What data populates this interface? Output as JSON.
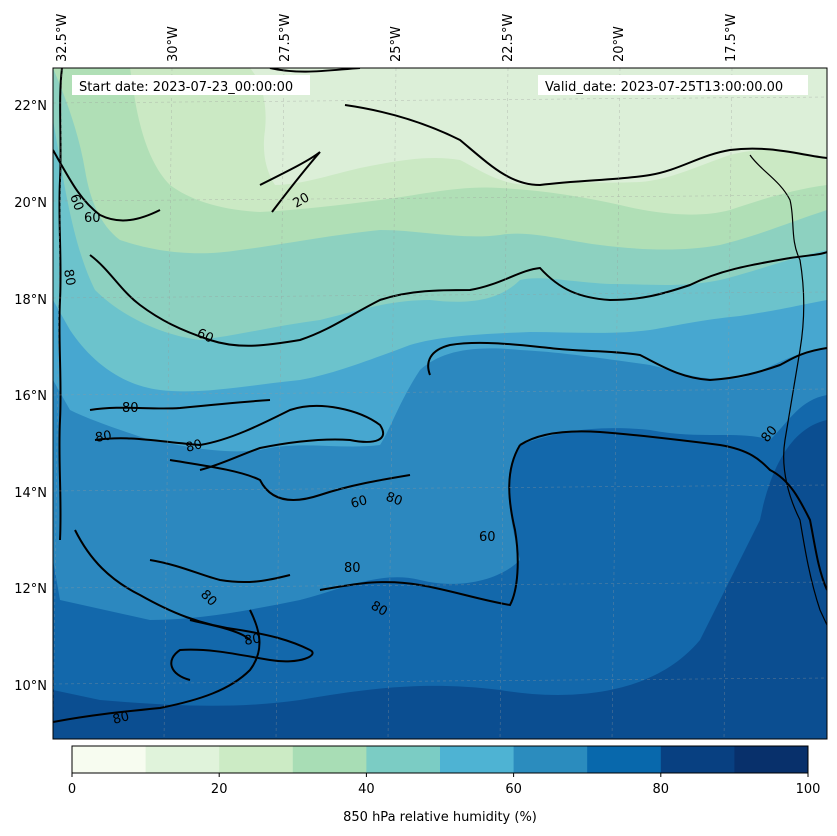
{
  "header": {
    "start_date": "Start date: 2023-07-23_00:00:00",
    "valid_date": "Valid_date: 2023-07-25T13:00:00.00"
  },
  "map": {
    "longitude_labels": [
      "32.5°W",
      "30°W",
      "27.5°W",
      "25°W",
      "22.5°W",
      "20°W",
      "17.5°W"
    ],
    "latitude_labels": [
      "22°N",
      "20°N",
      "18°N",
      "16°N",
      "14°N",
      "12°N",
      "10°N"
    ],
    "contour_labels": [
      "60",
      "60",
      "80",
      "20",
      "60",
      "80",
      "80",
      "80",
      "80",
      "80",
      "80",
      "80",
      "60",
      "60",
      "80",
      "80",
      "80"
    ]
  },
  "colorbar": {
    "ticks": [
      "0",
      "20",
      "40",
      "60",
      "80",
      "100"
    ],
    "label": "850 hPa relative humidity (%)",
    "colors": [
      "#f7fcf0",
      "#e0f3db",
      "#ccebc5",
      "#a8ddb5",
      "#7bccc4",
      "#4eb3d3",
      "#2b8cbe",
      "#0868ac",
      "#084081",
      "#08306b"
    ]
  },
  "colors": {
    "level_10_20": "#dcefd8",
    "level_20_30": "#cbe9c4",
    "level_30_40": "#b0dfb6",
    "level_40_50": "#8dd1c0",
    "level_50_60": "#6cc3cc",
    "level_60_70": "#47a7d0",
    "level_70_80": "#2c88bf",
    "level_80_90": "#1368ab",
    "level_90_100": "#0b4e91",
    "contour": "#000000"
  }
}
